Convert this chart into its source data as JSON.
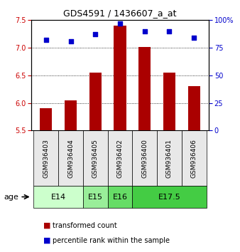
{
  "title": "GDS4591 / 1436607_a_at",
  "samples": [
    "GSM936403",
    "GSM936404",
    "GSM936405",
    "GSM936402",
    "GSM936400",
    "GSM936401",
    "GSM936406"
  ],
  "bar_values": [
    5.9,
    6.05,
    6.55,
    7.4,
    7.02,
    6.55,
    6.3
  ],
  "scatter_values": [
    82,
    81,
    87,
    97,
    90,
    90,
    84
  ],
  "ylim_left": [
    5.5,
    7.5
  ],
  "ylim_right": [
    0,
    100
  ],
  "yticks_left": [
    5.5,
    6.0,
    6.5,
    7.0,
    7.5
  ],
  "yticks_right": [
    0,
    25,
    50,
    75,
    100
  ],
  "ytick_labels_right": [
    "0",
    "25",
    "50",
    "75",
    "100%"
  ],
  "bar_color": "#aa0000",
  "scatter_color": "#0000cc",
  "age_groups": [
    {
      "label": "E14",
      "samples": [
        "GSM936403",
        "GSM936404"
      ],
      "color": "#ccffcc"
    },
    {
      "label": "E15",
      "samples": [
        "GSM936405"
      ],
      "color": "#99ee99"
    },
    {
      "label": "E16",
      "samples": [
        "GSM936402"
      ],
      "color": "#66dd66"
    },
    {
      "label": "E17.5",
      "samples": [
        "GSM936400",
        "GSM936401",
        "GSM936406"
      ],
      "color": "#44cc44"
    }
  ],
  "legend_bar_label": "transformed count",
  "legend_scatter_label": "percentile rank within the sample",
  "age_label": "age",
  "bg_color": "#e8e8e8"
}
